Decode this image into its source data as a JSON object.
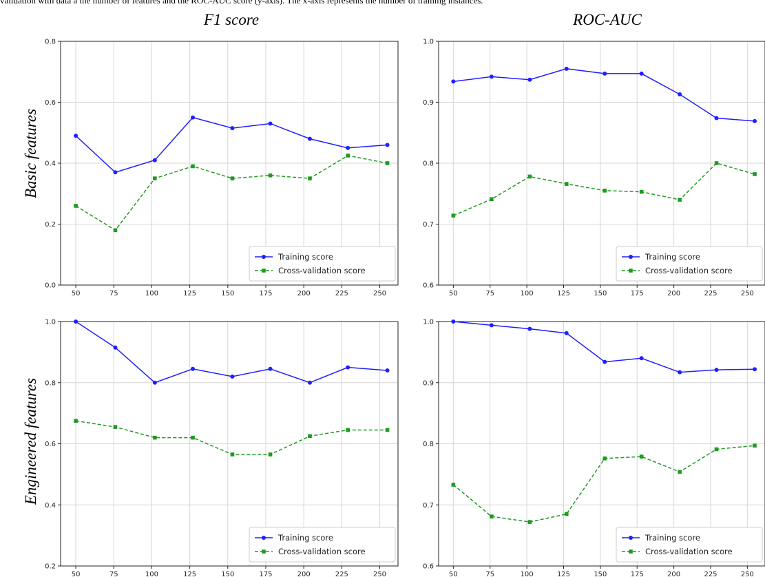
{
  "caption": "validation with data a the number of features and the ROC-AUC score (y-axis). The x-axis represents the number of training instances.",
  "column_titles": [
    "F1 score",
    "ROC-AUC"
  ],
  "row_titles": [
    "Basic features",
    "Engineered features"
  ],
  "colors": {
    "training": "#1f1fff",
    "cross_validation": "#1f9a1f"
  },
  "chart_data": [
    {
      "type": "line",
      "row_title": "Basic features",
      "col_title": "F1 score",
      "x": [
        50,
        76,
        102,
        127,
        153,
        178,
        204,
        229,
        255
      ],
      "xticks": [
        50,
        75,
        100,
        125,
        150,
        175,
        200,
        225,
        250
      ],
      "ylim": [
        0.0,
        0.8
      ],
      "yticks": [
        "0.0",
        "0.2",
        "0.4",
        "0.6",
        "0.8"
      ],
      "grid": true,
      "legend_loc": "lower-right",
      "series": [
        {
          "name": "Training score",
          "marker": "circle",
          "style": "solid",
          "values": [
            0.49,
            0.37,
            0.41,
            0.55,
            0.515,
            0.53,
            0.48,
            0.45,
            0.46
          ]
        },
        {
          "name": "Cross-validation score",
          "marker": "square",
          "style": "dashed",
          "values": [
            0.26,
            0.18,
            0.35,
            0.39,
            0.35,
            0.36,
            0.35,
            0.425,
            0.4
          ]
        }
      ]
    },
    {
      "type": "line",
      "row_title": "Basic features",
      "col_title": "ROC-AUC",
      "x": [
        50,
        76,
        102,
        127,
        153,
        178,
        204,
        229,
        255
      ],
      "xticks": [
        50,
        75,
        100,
        125,
        150,
        175,
        200,
        225,
        250
      ],
      "ylim": [
        0.6,
        1.0
      ],
      "yticks": [
        "0.6",
        "0.7",
        "0.8",
        "0.9",
        "1.0"
      ],
      "grid": true,
      "legend_loc": "lower-right",
      "series": [
        {
          "name": "Training score",
          "marker": "circle",
          "style": "solid",
          "values": [
            0.934,
            0.942,
            0.937,
            0.955,
            0.947,
            0.947,
            0.913,
            0.874,
            0.869
          ]
        },
        {
          "name": "Cross-validation score",
          "marker": "square",
          "style": "dashed",
          "values": [
            0.714,
            0.741,
            0.778,
            0.766,
            0.755,
            0.753,
            0.74,
            0.8,
            0.782
          ]
        }
      ]
    },
    {
      "type": "line",
      "row_title": "Engineered features",
      "col_title": "F1 score",
      "x": [
        50,
        76,
        102,
        127,
        153,
        178,
        204,
        229,
        255
      ],
      "xticks": [
        50,
        75,
        100,
        125,
        150,
        175,
        200,
        225,
        250
      ],
      "ylim": [
        0.2,
        1.0
      ],
      "yticks": [
        "0.2",
        "0.4",
        "0.6",
        "0.8",
        "1.0"
      ],
      "grid": true,
      "legend_loc": "lower-right",
      "series": [
        {
          "name": "Training score",
          "marker": "circle",
          "style": "solid",
          "values": [
            1.0,
            0.915,
            0.8,
            0.845,
            0.82,
            0.845,
            0.8,
            0.85,
            0.84
          ]
        },
        {
          "name": "Cross-validation score",
          "marker": "square",
          "style": "dashed",
          "values": [
            0.675,
            0.655,
            0.62,
            0.62,
            0.565,
            0.565,
            0.625,
            0.645,
            0.645
          ]
        }
      ]
    },
    {
      "type": "line",
      "row_title": "Engineered features",
      "col_title": "ROC-AUC",
      "x": [
        50,
        76,
        102,
        127,
        153,
        178,
        204,
        229,
        255
      ],
      "xticks": [
        50,
        75,
        100,
        125,
        150,
        175,
        200,
        225,
        250
      ],
      "ylim": [
        0.6,
        1.0
      ],
      "yticks": [
        "0.6",
        "0.7",
        "0.8",
        "0.9",
        "1.0"
      ],
      "grid": true,
      "legend_loc": "lower-right",
      "series": [
        {
          "name": "Training score",
          "marker": "circle",
          "style": "solid",
          "values": [
            1.0,
            0.994,
            0.988,
            0.981,
            0.934,
            0.94,
            0.917,
            0.921,
            0.922
          ]
        },
        {
          "name": "Cross-validation score",
          "marker": "square",
          "style": "dashed",
          "values": [
            0.733,
            0.681,
            0.672,
            0.685,
            0.776,
            0.779,
            0.754,
            0.791,
            0.797
          ]
        }
      ]
    }
  ]
}
